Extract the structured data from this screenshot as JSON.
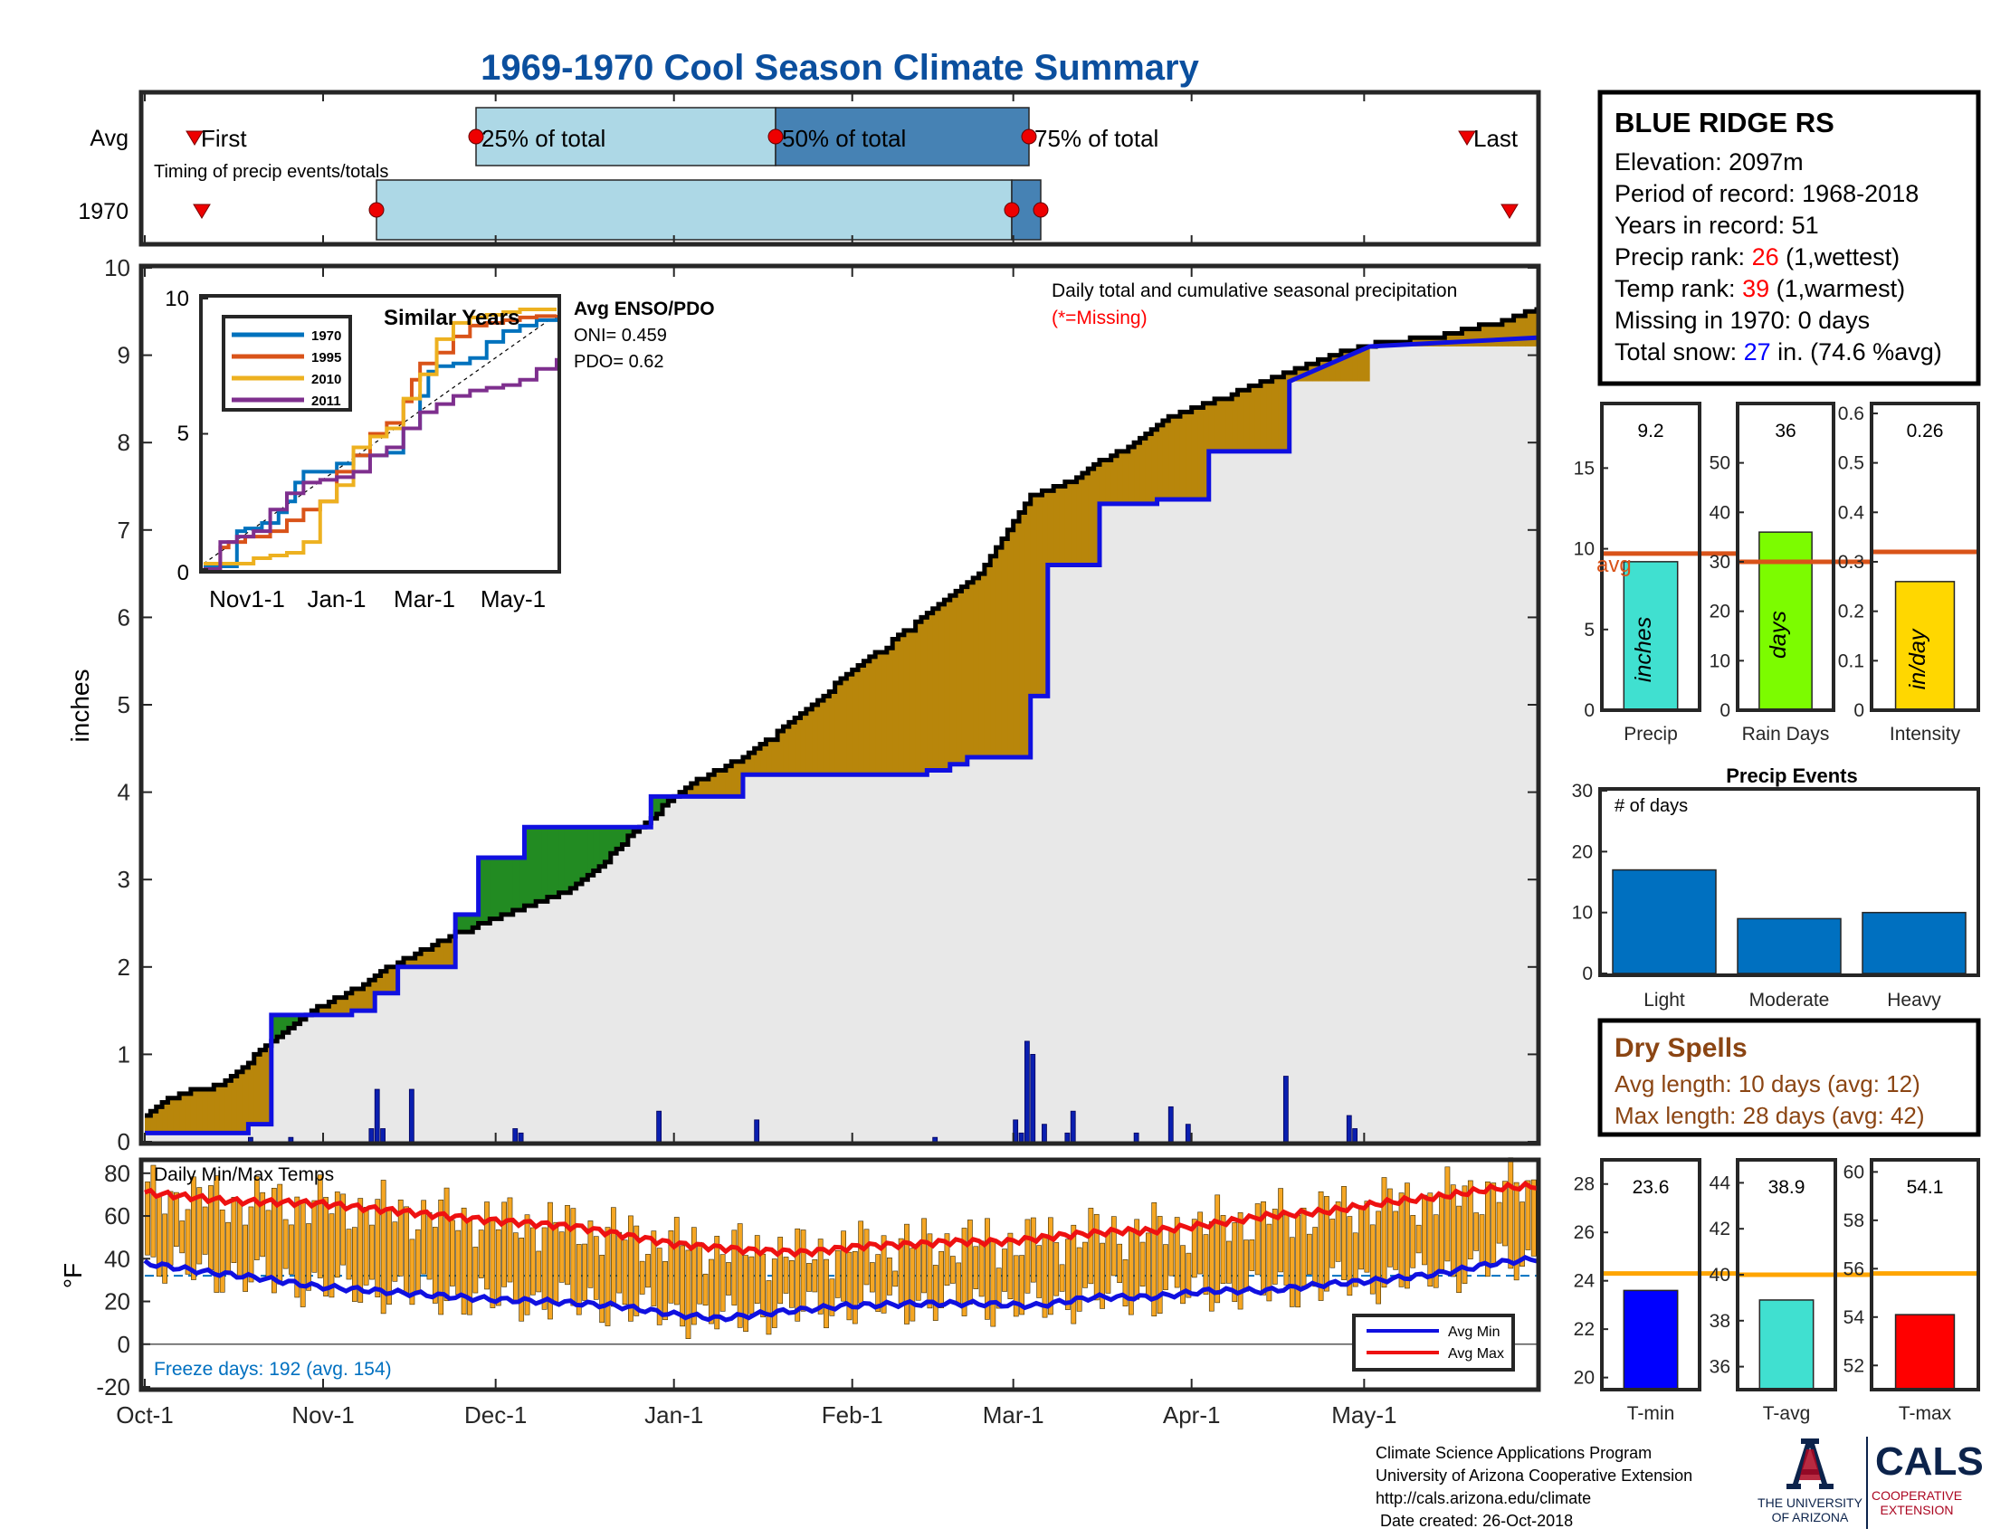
{
  "header": {
    "title": "1969-1970 Cool Season Climate Summary"
  },
  "timing": {
    "row_labels": [
      "Avg",
      "1970"
    ],
    "avg_labels": {
      "first": "First",
      "p25": "25% of total",
      "p50": "50% of total",
      "p75": "75% of total",
      "last": "Last"
    },
    "note": "Timing of precip events/totals"
  },
  "main": {
    "ylabel": "inches",
    "note": "Daily total and cumulative seasonal precipitation",
    "missing_note": "(*=Missing)"
  },
  "inset": {
    "title": "Similar Years",
    "enso_title": "Avg ENSO/PDO",
    "oni": "ONI= 0.459",
    "pdo": "PDO= 0.62",
    "xticks": [
      "Nov1-1",
      "Jan-1",
      "Mar-1",
      "May-1"
    ]
  },
  "temps": {
    "label": "Daily Min/Max Temps",
    "ylabel": "°F",
    "freeze": "Freeze days: 192 (avg. 154)",
    "legend_min": "Avg Min",
    "legend_max": "Avg Max"
  },
  "station": {
    "name": "BLUE RIDGE RS",
    "elevation": "Elevation: 2097m",
    "period": "Period of record: 1968-2018",
    "years": "Years in record: 51",
    "precip_rank_prefix": "Precip rank: ",
    "precip_rank": "26",
    "precip_rank_suffix": " (1,wettest)",
    "temp_rank_prefix": "Temp rank: ",
    "temp_rank": "39",
    "temp_rank_suffix": " (1,warmest)",
    "missing": "Missing in 1970: 0 days",
    "snow_prefix": "Total snow: ",
    "snow_value": "27",
    "snow_suffix": " in. (74.6 %avg)"
  },
  "dry_spells": {
    "title": "Dry Spells",
    "avg_length": "Avg length: 10 days (avg: 12)",
    "max_length": "Max length: 28 days (avg: 42)"
  },
  "footer": {
    "lines": [
      "Climate Science Applications Program",
      "University of Arizona Cooperative Extension",
      "http://cals.arizona.edu/climate",
      " Date created: 26-Oct-2018"
    ],
    "ua_line1": "THE UNIVERSITY",
    "ua_line2": "OF ARIZONA",
    "cals": "CALS",
    "coop1": "COOPERATIVE",
    "coop2": "EXTENSION"
  },
  "colors": {
    "title": "#0b4f9e",
    "cum1970": "#1010e0",
    "avgcum": "#000000",
    "deficit": "#b8860b",
    "surplus": "#228b22",
    "fill": "#e8e8e8",
    "bar_light": "#add8e6",
    "bar_dark": "#4682b4",
    "avg_line": "#d95319",
    "precip_bar": "#40e0d0",
    "rain_bar": "#7cfc00",
    "intensity_bar": "#ffd700",
    "event_bar": "#0070c0",
    "temp_bar": "#f5a623",
    "dry": "#8b4513",
    "rank_red": "#ff0000",
    "snow_blue": "#0000ff",
    "ua_blue": "#0c234b",
    "ua_red": "#ab0520"
  },
  "chart_data": [
    {
      "type": "line",
      "title": "Daily total and cumulative seasonal precipitation",
      "ylabel": "inches",
      "ylim": [
        0,
        10
      ],
      "x_ticks": [
        "Oct-1",
        "Nov-1",
        "Dec-1",
        "Jan-1",
        "Feb-1",
        "Mar-1",
        "Apr-1",
        "May-1"
      ],
      "x_unit": "day of season (0 = Oct-1)",
      "series": [
        {
          "name": "1970",
          "x": [
            0,
            18,
            18,
            22,
            22,
            36,
            36,
            40,
            40,
            44,
            44,
            54,
            54,
            58,
            58,
            66,
            66,
            88,
            88,
            104,
            104,
            136,
            136,
            140,
            140,
            143,
            143,
            154,
            154,
            157,
            157,
            166,
            166,
            176,
            176,
            185,
            185,
            199,
            199,
            213,
            242
          ],
          "y": [
            0.1,
            0.1,
            0.2,
            0.2,
            1.45,
            1.45,
            1.5,
            1.5,
            1.7,
            1.7,
            2.0,
            2.0,
            2.6,
            2.6,
            3.25,
            3.25,
            3.6,
            3.6,
            3.95,
            3.95,
            4.2,
            4.2,
            4.25,
            4.25,
            4.32,
            4.32,
            4.4,
            4.4,
            5.1,
            5.1,
            6.6,
            6.6,
            7.3,
            7.3,
            7.35,
            7.35,
            7.9,
            7.9,
            8.7,
            9.1,
            9.2
          ]
        },
        {
          "name": "Avg",
          "x": [
            0,
            4,
            8,
            14,
            19,
            25,
            30,
            36,
            42,
            48,
            54,
            60,
            66,
            72,
            78,
            84,
            90,
            96,
            102,
            108,
            114,
            120,
            126,
            132,
            138,
            144,
            148,
            150,
            154,
            160,
            166,
            172,
            178,
            184,
            190,
            196,
            202,
            208,
            214,
            220,
            226,
            232,
            238,
            242
          ],
          "y": [
            0.3,
            0.5,
            0.6,
            0.7,
            1.0,
            1.3,
            1.55,
            1.75,
            2.0,
            2.2,
            2.4,
            2.55,
            2.7,
            2.85,
            3.1,
            3.5,
            3.85,
            4.15,
            4.35,
            4.6,
            4.9,
            5.25,
            5.55,
            5.85,
            6.15,
            6.45,
            6.8,
            7.0,
            7.4,
            7.55,
            7.8,
            8.0,
            8.3,
            8.45,
            8.6,
            8.75,
            8.9,
            9.05,
            9.15,
            9.2,
            9.25,
            9.35,
            9.45,
            9.55
          ]
        }
      ],
      "daily_bars": {
        "x": [
          18,
          25,
          39,
          40,
          41,
          46,
          64,
          65,
          89,
          106,
          137,
          151,
          152,
          153,
          154,
          156,
          160,
          161,
          172,
          178,
          181,
          198,
          209,
          210
        ],
        "values": [
          0.05,
          0.05,
          0.15,
          0.6,
          0.15,
          0.6,
          0.15,
          0.1,
          0.35,
          0.25,
          0.05,
          0.25,
          0.1,
          1.15,
          1.0,
          0.2,
          0.1,
          0.35,
          0.1,
          0.4,
          0.2,
          0.75,
          0.3,
          0.15
        ]
      }
    },
    {
      "type": "line",
      "title": "Similar Years",
      "ylim": [
        0,
        10
      ],
      "x_ticks": [
        "Nov1-1",
        "Jan-1",
        "Mar-1",
        "May-1"
      ],
      "series": [
        {
          "name": "1970",
          "x": [
            0,
            15,
            20,
            25,
            35,
            45,
            50,
            55,
            60,
            70,
            80,
            90,
            105,
            110,
            120,
            130,
            135,
            140,
            150,
            160,
            170,
            180,
            190,
            200,
            212
          ],
          "y": [
            0.1,
            0.1,
            1.4,
            1.5,
            1.7,
            2.1,
            2.5,
            3.2,
            3.6,
            3.6,
            3.9,
            4.2,
            4.2,
            4.3,
            5.2,
            6.4,
            7.3,
            7.5,
            7.6,
            7.8,
            8.4,
            8.8,
            9.0,
            9.2,
            9.3
          ]
        },
        {
          "name": "1995",
          "x": [
            0,
            10,
            15,
            25,
            40,
            50,
            60,
            70,
            80,
            90,
            100,
            110,
            120,
            125,
            130,
            140,
            150,
            160,
            170,
            180,
            190,
            200,
            212
          ],
          "y": [
            0.2,
            0.8,
            1.0,
            1.2,
            1.4,
            1.8,
            2.2,
            2.5,
            3.6,
            4.2,
            5.0,
            5.4,
            6.2,
            7.0,
            7.6,
            8.0,
            8.6,
            9.0,
            9.1,
            9.2,
            9.3,
            9.35,
            9.4
          ]
        },
        {
          "name": "2010",
          "x": [
            0,
            20,
            30,
            40,
            50,
            60,
            70,
            80,
            90,
            100,
            110,
            120,
            130,
            140,
            150,
            160,
            170,
            180,
            190,
            200,
            212
          ],
          "y": [
            0.2,
            0.2,
            0.4,
            0.5,
            0.6,
            1.0,
            2.5,
            3.1,
            4.5,
            4.9,
            5.2,
            6.3,
            7.2,
            8.5,
            9.1,
            9.3,
            9.4,
            9.5,
            9.6,
            9.6,
            9.6
          ]
        },
        {
          "name": "2011",
          "x": [
            0,
            10,
            20,
            30,
            40,
            50,
            60,
            70,
            80,
            90,
            100,
            110,
            120,
            130,
            140,
            150,
            160,
            170,
            180,
            190,
            200,
            212
          ],
          "y": [
            0.0,
            1.0,
            1.2,
            1.4,
            2.2,
            2.8,
            3.2,
            3.3,
            3.4,
            3.6,
            4.2,
            4.5,
            5.2,
            5.8,
            6.1,
            6.4,
            6.6,
            6.7,
            6.8,
            7.0,
            7.4,
            7.8
          ]
        }
      ]
    },
    {
      "type": "bar",
      "title": "Precip",
      "values": [
        9.2
      ],
      "avg": 9.7,
      "ylim": [
        0,
        19
      ],
      "ytick_labels": [
        "0",
        "5",
        "10",
        "15"
      ],
      "bar_label": "inches",
      "xlabel": "Precip",
      "avg_label": "avg"
    },
    {
      "type": "bar",
      "title": "Rain Days",
      "values": [
        36
      ],
      "avg": 30,
      "ylim": [
        0,
        62
      ],
      "ytick_labels": [
        "0",
        "10",
        "20",
        "30",
        "40",
        "50"
      ],
      "bar_label": "days",
      "xlabel": "Rain Days"
    },
    {
      "type": "bar",
      "title": "Intensity",
      "values": [
        0.26
      ],
      "avg": 0.32,
      "ylim": [
        0,
        0.62
      ],
      "ytick_labels": [
        "0",
        "0.1",
        "0.2",
        "0.3",
        "0.4",
        "0.5",
        "0.6"
      ],
      "bar_label": "in/day",
      "xlabel": "Intensity"
    },
    {
      "type": "bar",
      "title": "Precip Events",
      "ylabel": "# of days",
      "categories": [
        "Light",
        "Moderate",
        "Heavy"
      ],
      "values": [
        17,
        9,
        10
      ],
      "ylim": [
        0,
        30
      ],
      "ytick_labels": [
        "0",
        "10",
        "20",
        "30"
      ]
    },
    {
      "type": "bar",
      "title": "T-min",
      "values": [
        23.6
      ],
      "avg": 24.3,
      "ylim": [
        19.5,
        29
      ],
      "ytick_labels": [
        "20",
        "22",
        "24",
        "26",
        "28"
      ],
      "xlabel": "T-min"
    },
    {
      "type": "bar",
      "title": "T-avg",
      "values": [
        38.9
      ],
      "avg": 40.0,
      "ylim": [
        35,
        45
      ],
      "ytick_labels": [
        "36",
        "38",
        "40",
        "42",
        "44"
      ],
      "xlabel": "T-avg"
    },
    {
      "type": "bar",
      "title": "T-max",
      "values": [
        54.1
      ],
      "avg": 55.8,
      "ylim": [
        51,
        60.5
      ],
      "ytick_labels": [
        "52",
        "54",
        "56",
        "58",
        "60"
      ],
      "xlabel": "T-max"
    },
    {
      "type": "line",
      "title": "Daily Min/Max Temps",
      "ylabel": "°F",
      "ylim": [
        -20,
        85
      ],
      "ytick_labels": [
        "-20",
        "0",
        "20",
        "40",
        "60",
        "80"
      ],
      "series": [
        {
          "name": "Avg Max",
          "x": [
            0,
            15,
            30,
            45,
            60,
            75,
            92,
            105,
            115,
            125,
            135,
            140,
            150,
            160,
            170,
            175,
            185,
            195,
            205,
            215,
            225,
            235,
            242
          ],
          "y": [
            71,
            67,
            66,
            62,
            58,
            55,
            47,
            44,
            43,
            46,
            47,
            48,
            48,
            51,
            53,
            53,
            56,
            60,
            62,
            66,
            69,
            73,
            74
          ]
        },
        {
          "name": "Avg Min",
          "x": [
            0,
            10,
            20,
            30,
            40,
            50,
            60,
            70,
            82,
            92,
            100,
            110,
            122,
            135,
            145,
            155,
            165,
            175,
            185,
            195,
            205,
            215,
            225,
            235,
            242
          ],
          "y": [
            38,
            34,
            31,
            27,
            25,
            23,
            21,
            20,
            18,
            14,
            12,
            15,
            18,
            19,
            19,
            18,
            22,
            22,
            25,
            25,
            28,
            30,
            33,
            38,
            40
          ]
        }
      ],
      "freeze_line": 32
    }
  ]
}
